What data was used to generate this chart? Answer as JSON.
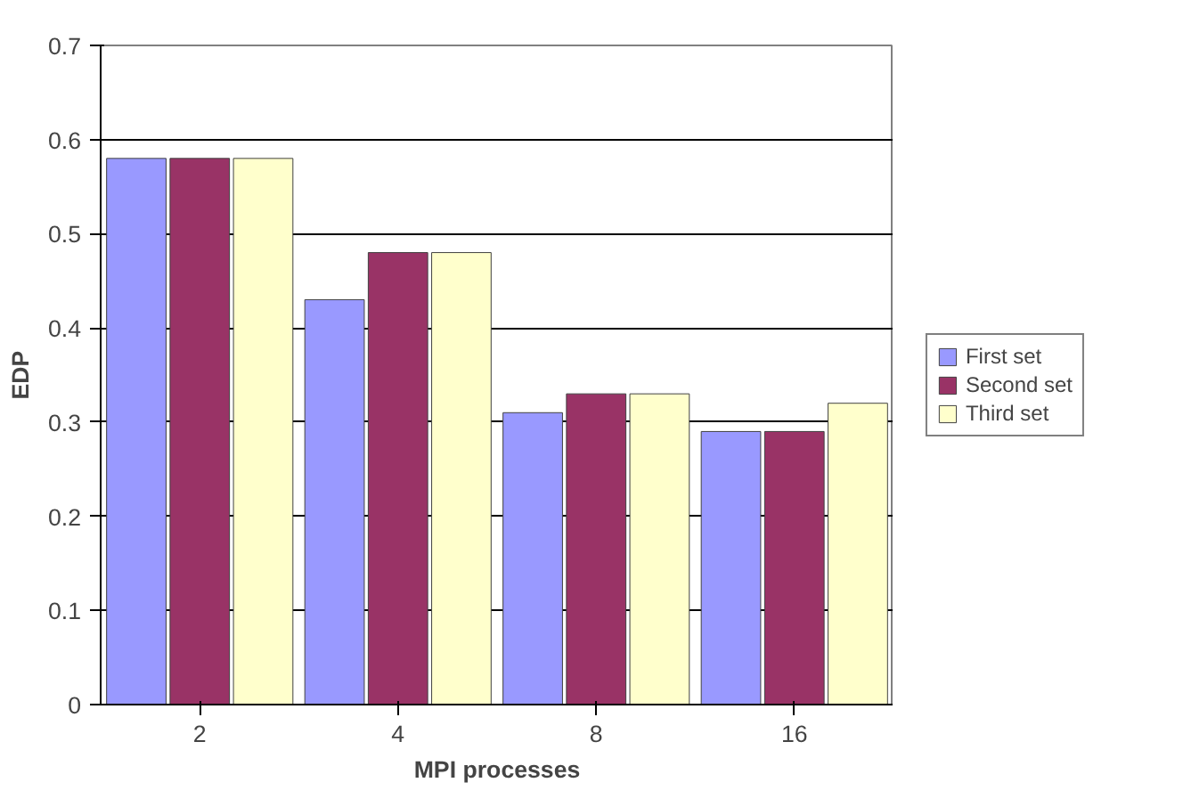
{
  "chart_data": {
    "type": "bar",
    "xlabel": "MPI processes",
    "ylabel": "EDP",
    "categories": [
      "2",
      "4",
      "8",
      "16"
    ],
    "series": [
      {
        "name": "First set",
        "color": "#9999ff",
        "values": [
          0.58,
          0.43,
          0.31,
          0.29
        ]
      },
      {
        "name": "Second set",
        "color": "#993366",
        "values": [
          0.58,
          0.48,
          0.33,
          0.29
        ]
      },
      {
        "name": "Third set",
        "color": "#ffffcc",
        "values": [
          0.58,
          0.48,
          0.33,
          0.32
        ]
      }
    ],
    "ylim": [
      0,
      0.7
    ],
    "yticks": [
      0,
      0.1,
      0.2,
      0.3,
      0.4,
      0.5,
      0.6,
      0.7
    ],
    "grid": "y",
    "legend": "right"
  }
}
